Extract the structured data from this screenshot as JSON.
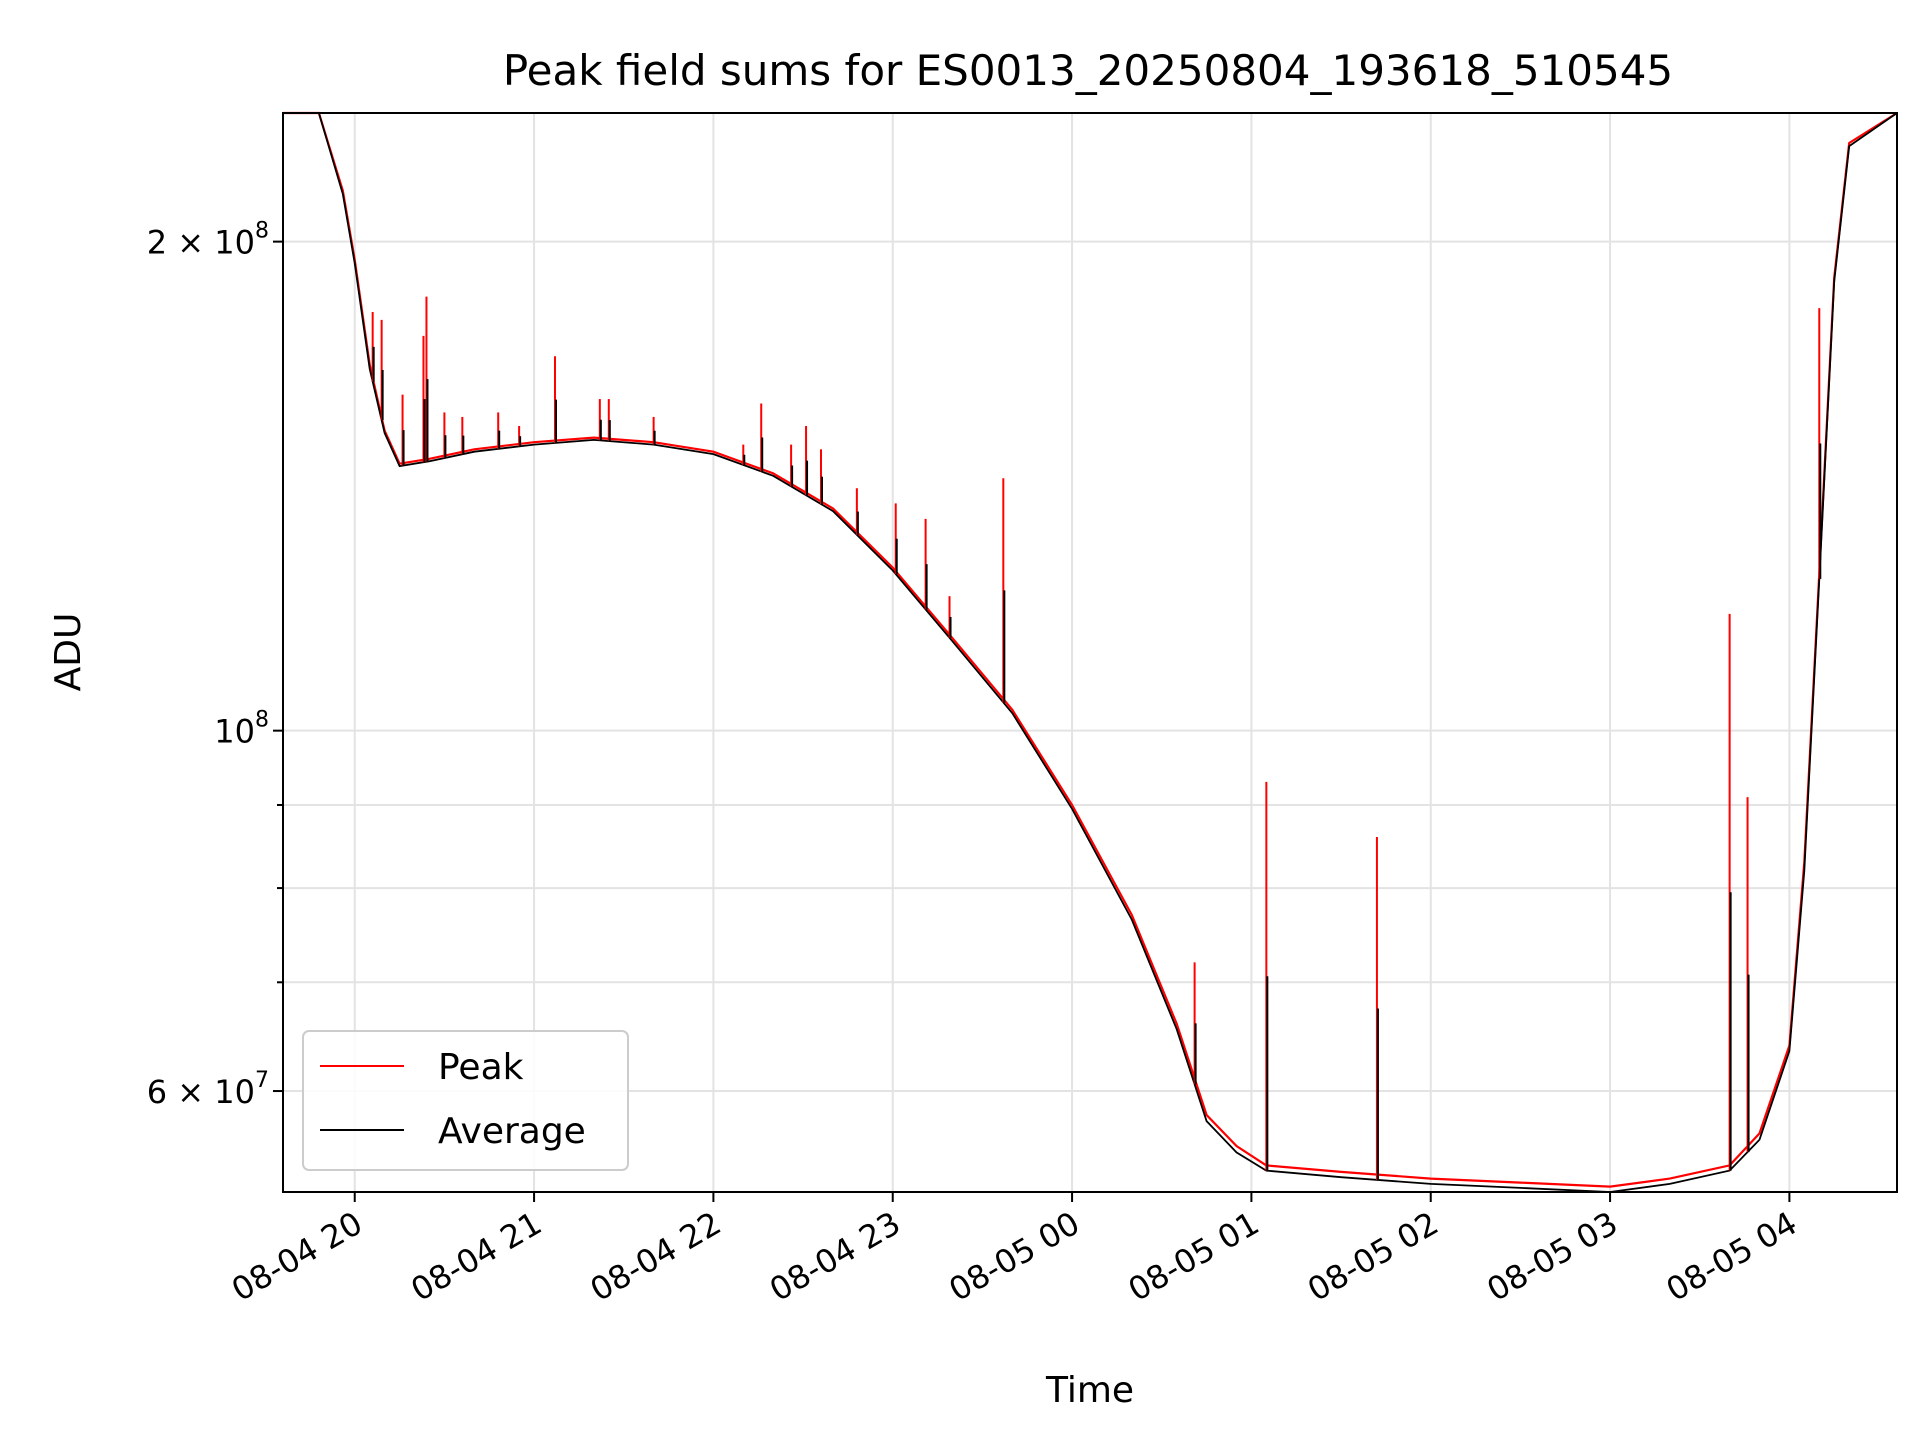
{
  "chart_data": {
    "type": "line",
    "title": "Peak field sums for ES0013_20250804_193618_510545",
    "xlabel": "Time",
    "ylabel": "ADU",
    "y_scale": "log",
    "grid": true,
    "legend_position": "lower-left",
    "x_range": [
      "2025-08-04 19:36",
      "2025-08-05 04:36"
    ],
    "y_range": [
      52000000,
      240000000
    ],
    "x_tick_labels": [
      "08-04 20",
      "08-04 21",
      "08-04 22",
      "08-04 23",
      "08-05 00",
      "08-05 01",
      "08-05 02",
      "08-05 03",
      "08-05 04"
    ],
    "x_tick_values": [
      "2025-08-04 20:00",
      "2025-08-04 21:00",
      "2025-08-04 22:00",
      "2025-08-04 23:00",
      "2025-08-05 00:00",
      "2025-08-05 01:00",
      "2025-08-05 02:00",
      "2025-08-05 03:00",
      "2025-08-05 04:00"
    ],
    "y_major_ticks": [
      {
        "value": 200000000,
        "mantissa": "2 × 10",
        "exp": "8"
      },
      {
        "value": 100000000,
        "mantissa": "10",
        "exp": "8"
      },
      {
        "value": 60000000,
        "mantissa": "6 × 10",
        "exp": "7"
      }
    ],
    "y_minor_ticks": [
      300000000,
      90000000,
      80000000,
      70000000
    ],
    "series": [
      {
        "name": "Peak",
        "color": "#ff0000",
        "x": [
          "2025-08-04 19:36",
          "2025-08-04 19:48",
          "2025-08-04 19:56",
          "2025-08-04 20:00",
          "2025-08-04 20:05",
          "2025-08-04 20:10",
          "2025-08-04 20:15",
          "2025-08-04 20:25",
          "2025-08-04 20:40",
          "2025-08-04 21:00",
          "2025-08-04 21:20",
          "2025-08-04 21:40",
          "2025-08-04 22:00",
          "2025-08-04 22:20",
          "2025-08-04 22:40",
          "2025-08-04 23:00",
          "2025-08-04 23:20",
          "2025-08-04 23:40",
          "2025-08-05 00:00",
          "2025-08-05 00:20",
          "2025-08-05 00:35",
          "2025-08-05 00:45",
          "2025-08-05 00:55",
          "2025-08-05 01:05",
          "2025-08-05 01:30",
          "2025-08-05 02:00",
          "2025-08-05 02:30",
          "2025-08-05 03:00",
          "2025-08-05 03:20",
          "2025-08-05 03:40",
          "2025-08-05 03:50",
          "2025-08-05 04:00",
          "2025-08-05 04:05",
          "2025-08-05 04:10",
          "2025-08-05 04:15",
          "2025-08-05 04:20",
          "2025-08-05 04:36"
        ],
        "values": [
          240000000,
          240000000,
          215000000,
          195000000,
          168000000,
          153000000,
          146000000,
          147000000,
          149000000,
          150500000,
          151500000,
          150500000,
          148500000,
          144000000,
          137000000,
          126000000,
          114000000,
          103000000,
          90000000,
          77000000,
          66000000,
          58000000,
          55500000,
          54000000,
          53500000,
          53000000,
          52700000,
          52400000,
          53000000,
          54000000,
          56500000,
          64000000,
          83000000,
          125000000,
          190000000,
          230000000,
          240000000
        ],
        "spikes": [
          {
            "x": "2025-08-04 20:06",
            "value": 181000000
          },
          {
            "x": "2025-08-04 20:09",
            "value": 179000000
          },
          {
            "x": "2025-08-04 20:16",
            "value": 161000000
          },
          {
            "x": "2025-08-04 20:23",
            "value": 175000000
          },
          {
            "x": "2025-08-04 20:24",
            "value": 185000000
          },
          {
            "x": "2025-08-04 20:30",
            "value": 157000000
          },
          {
            "x": "2025-08-04 20:36",
            "value": 156000000
          },
          {
            "x": "2025-08-04 20:48",
            "value": 157000000
          },
          {
            "x": "2025-08-04 20:55",
            "value": 154000000
          },
          {
            "x": "2025-08-04 21:07",
            "value": 170000000
          },
          {
            "x": "2025-08-04 21:22",
            "value": 160000000
          },
          {
            "x": "2025-08-04 21:25",
            "value": 160000000
          },
          {
            "x": "2025-08-04 21:40",
            "value": 156000000
          },
          {
            "x": "2025-08-04 22:10",
            "value": 150000000
          },
          {
            "x": "2025-08-04 22:16",
            "value": 159000000
          },
          {
            "x": "2025-08-04 22:26",
            "value": 150000000
          },
          {
            "x": "2025-08-04 22:31",
            "value": 154000000
          },
          {
            "x": "2025-08-04 22:36",
            "value": 149000000
          },
          {
            "x": "2025-08-04 22:48",
            "value": 141000000
          },
          {
            "x": "2025-08-04 23:01",
            "value": 138000000
          },
          {
            "x": "2025-08-04 23:11",
            "value": 135000000
          },
          {
            "x": "2025-08-04 23:19",
            "value": 121000000
          },
          {
            "x": "2025-08-04 23:37",
            "value": 143000000
          },
          {
            "x": "2025-08-05 00:41",
            "value": 72000000
          },
          {
            "x": "2025-08-05 01:05",
            "value": 93000000
          },
          {
            "x": "2025-08-05 01:42",
            "value": 86000000
          },
          {
            "x": "2025-08-05 03:40",
            "value": 118000000
          },
          {
            "x": "2025-08-05 03:46",
            "value": 91000000
          },
          {
            "x": "2025-08-05 04:10",
            "value": 182000000
          }
        ]
      },
      {
        "name": "Average",
        "color": "#000000",
        "x": [
          "2025-08-04 19:36",
          "2025-08-04 19:48",
          "2025-08-04 19:56",
          "2025-08-04 20:00",
          "2025-08-04 20:05",
          "2025-08-04 20:10",
          "2025-08-04 20:15",
          "2025-08-04 20:25",
          "2025-08-04 20:40",
          "2025-08-04 21:00",
          "2025-08-04 21:20",
          "2025-08-04 21:40",
          "2025-08-04 22:00",
          "2025-08-04 22:20",
          "2025-08-04 22:40",
          "2025-08-04 23:00",
          "2025-08-04 23:20",
          "2025-08-04 23:40",
          "2025-08-05 00:00",
          "2025-08-05 00:20",
          "2025-08-05 00:35",
          "2025-08-05 00:45",
          "2025-08-05 00:55",
          "2025-08-05 01:05",
          "2025-08-05 01:30",
          "2025-08-05 02:00",
          "2025-08-05 02:30",
          "2025-08-05 03:00",
          "2025-08-05 03:20",
          "2025-08-05 03:40",
          "2025-08-05 03:50",
          "2025-08-05 04:00",
          "2025-08-05 04:05",
          "2025-08-05 04:10",
          "2025-08-05 04:15",
          "2025-08-05 04:20",
          "2025-08-05 04:36"
        ],
        "values": [
          240000000,
          240000000,
          214000000,
          194000000,
          167000000,
          152500000,
          145500000,
          146500000,
          148500000,
          150000000,
          151000000,
          150000000,
          148000000,
          143500000,
          136500000,
          125500000,
          113500000,
          102500000,
          89500000,
          76500000,
          65500000,
          57500000,
          55000000,
          53600000,
          53100000,
          52600000,
          52300000,
          52000000,
          52600000,
          53600000,
          56000000,
          63500000,
          82000000,
          124000000,
          189000000,
          229000000,
          240000000
        ]
      }
    ]
  }
}
